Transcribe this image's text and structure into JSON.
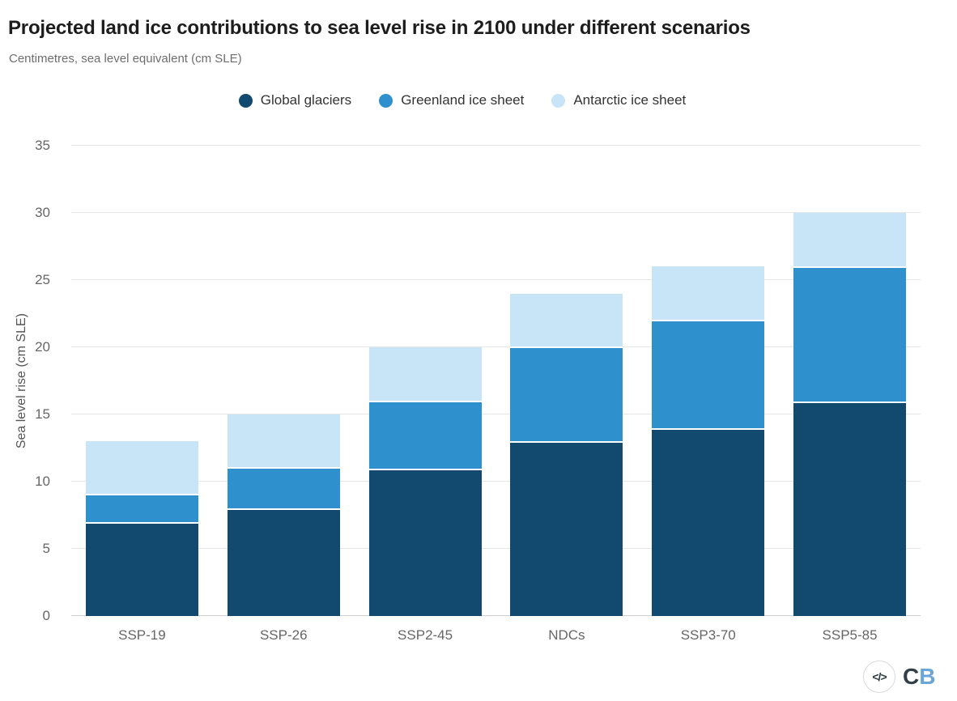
{
  "header": {
    "title": "Projected land ice contributions to sea level rise in 2100 under different scenarios",
    "subtitle": "Centimetres, sea level equivalent (cm SLE)"
  },
  "chart_data": {
    "type": "bar",
    "stacked": true,
    "title": "Projected land ice contributions to sea level rise in 2100 under different scenarios",
    "subtitle": "Centimetres, sea level equivalent (cm SLE)",
    "xlabel": "",
    "ylabel": "Sea level rise (cm SLE)",
    "ylim": [
      0,
      35
    ],
    "yticks": [
      0,
      5,
      10,
      15,
      20,
      25,
      30,
      35
    ],
    "grid": true,
    "legend_position": "top",
    "categories": [
      "SSP-19",
      "SSP-26",
      "SSP2-45",
      "NDCs",
      "SSP3-70",
      "SSP5-85"
    ],
    "series": [
      {
        "name": "Global glaciers",
        "color": "#12496f",
        "values": [
          7,
          8,
          11,
          13,
          14,
          16
        ]
      },
      {
        "name": "Greenland ice sheet",
        "color": "#2f90ce",
        "values": [
          2,
          3,
          5,
          7,
          8,
          10
        ]
      },
      {
        "name": "Antarctic ice sheet",
        "color": "#c8e4f7",
        "values": [
          4,
          4,
          4,
          4,
          4,
          4
        ]
      }
    ],
    "stack_totals": [
      13,
      15,
      20,
      24,
      26,
      30
    ],
    "colors": {
      "gridline": "#e6e6e6",
      "zero_line": "#cfcfcf",
      "axis_text": "#666666",
      "title_text": "#1d1d1d",
      "subtitle_text": "#6e6e6e"
    }
  },
  "footer": {
    "embed_icon": "</>",
    "logo": {
      "letter_c": "C",
      "letter_b": "B",
      "color_c": "#323f4a",
      "color_b": "#6aa5da"
    }
  }
}
